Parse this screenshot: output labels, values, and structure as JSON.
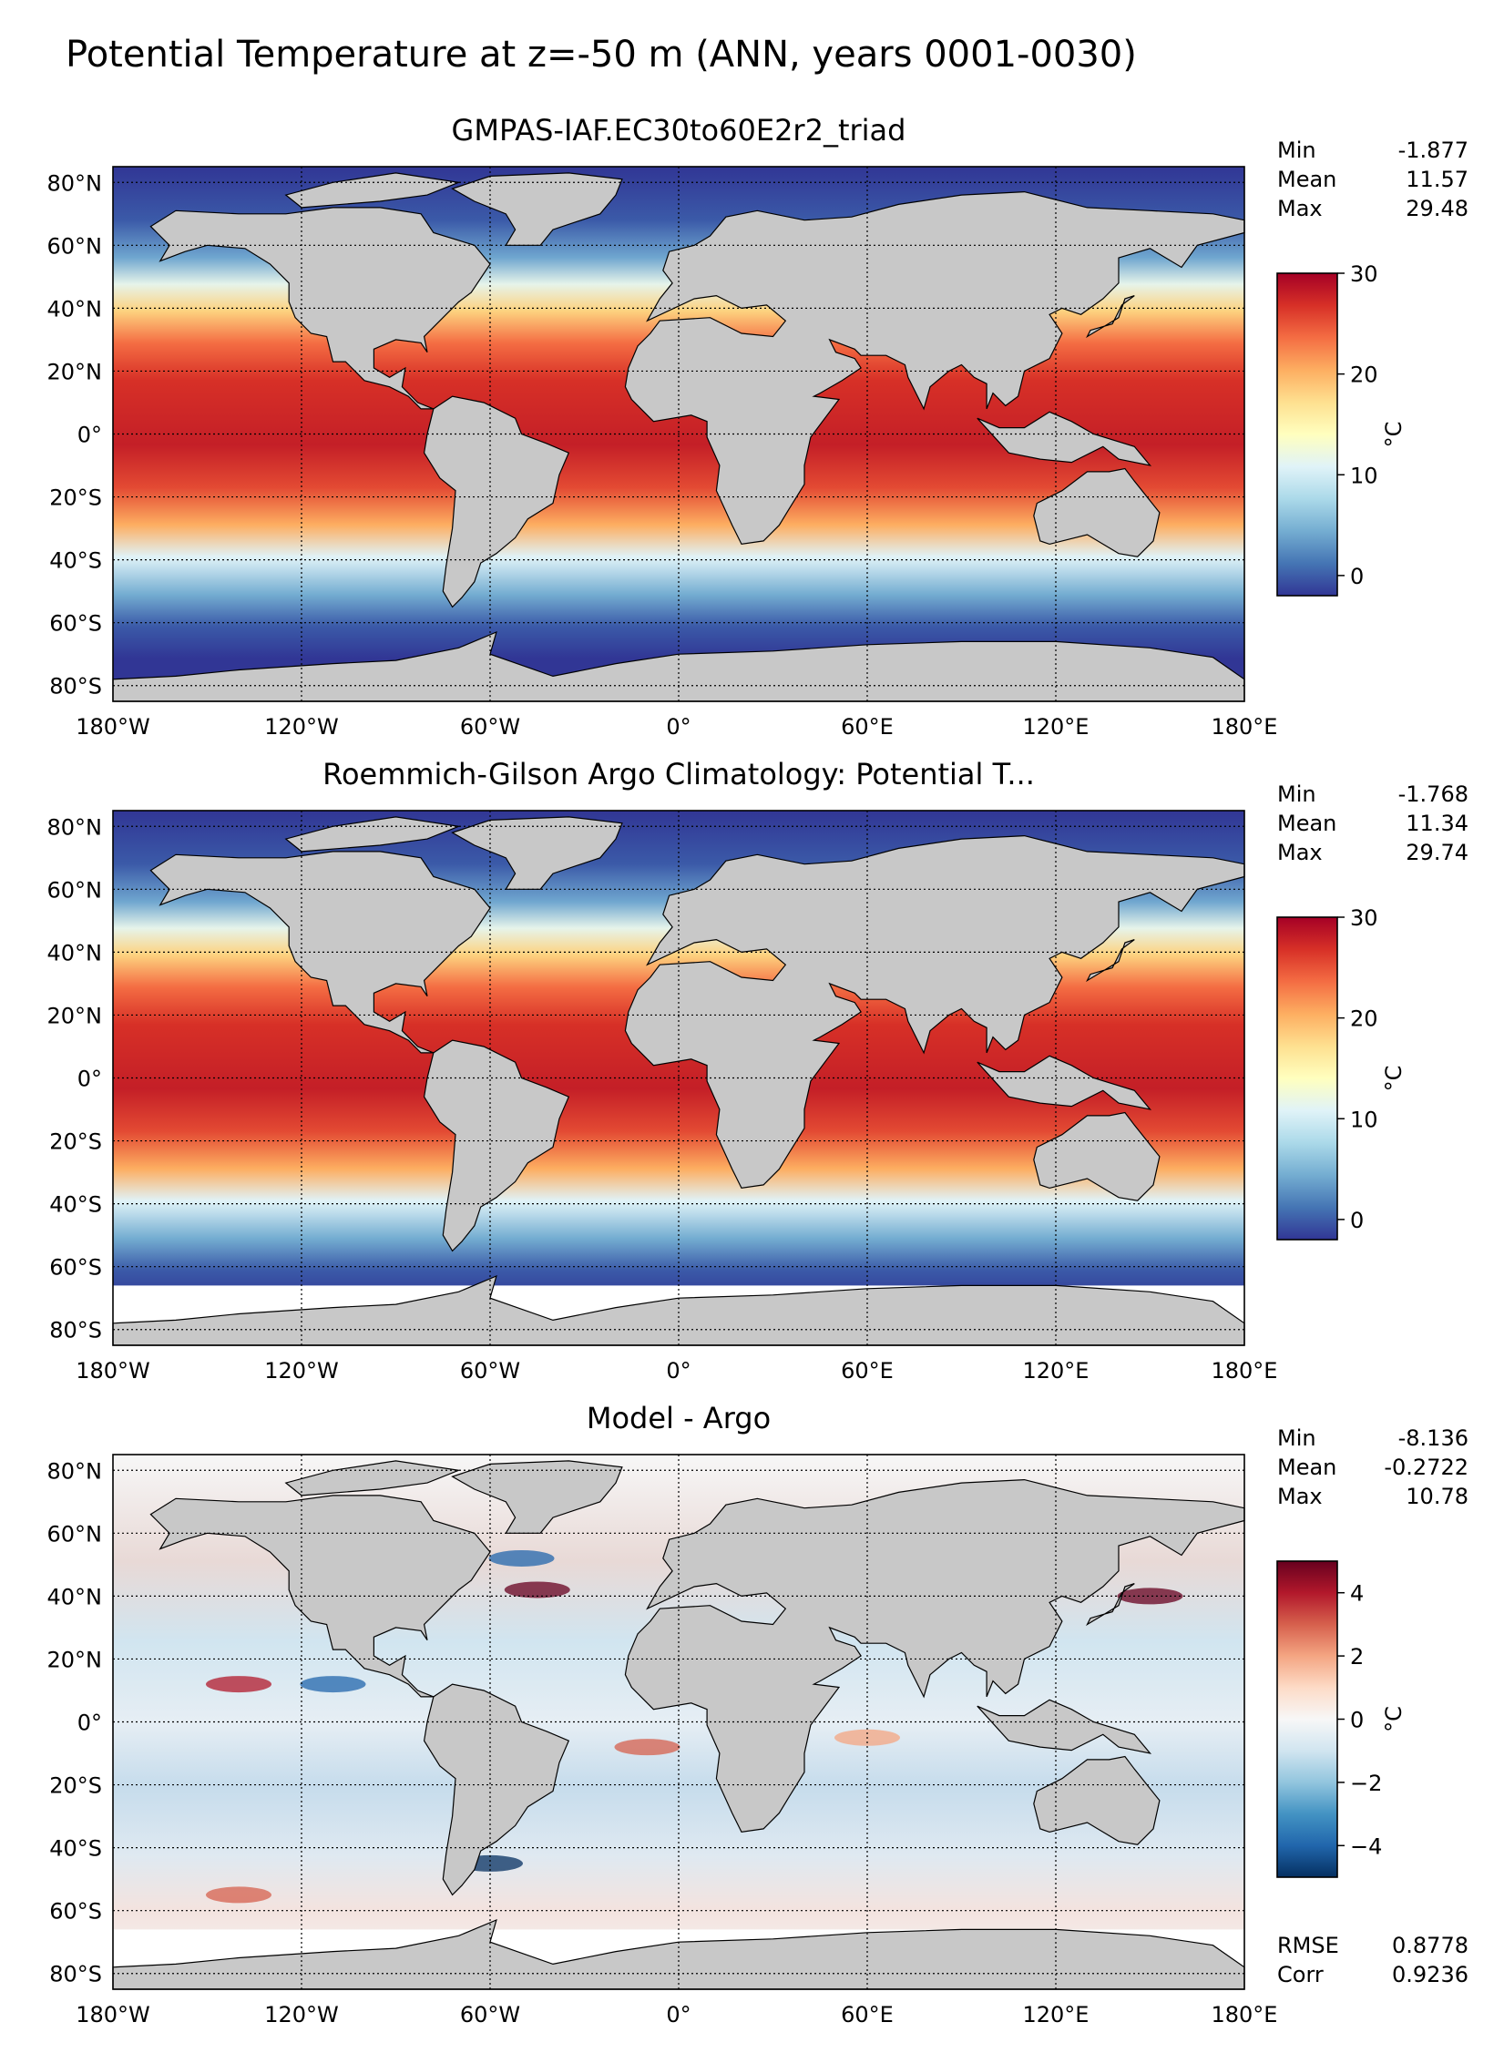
{
  "suptitle": "Potential Temperature at z=-50 m (ANN, years 0001-0030)",
  "x_ticks": [
    "180°W",
    "120°W",
    "60°W",
    "0°",
    "60°E",
    "120°E",
    "180°E"
  ],
  "y_ticks": [
    "80°N",
    "60°N",
    "40°N",
    "20°N",
    "0°",
    "20°S",
    "40°S",
    "60°S",
    "80°S"
  ],
  "unit": "°C",
  "colors": {
    "land": "#c8c8c8",
    "nodata": "#ffffff",
    "temp_scale": [
      "#313695",
      "#4575b4",
      "#74add1",
      "#abd9e9",
      "#e0f3f8",
      "#ffffbf",
      "#fee090",
      "#fdae61",
      "#f46d43",
      "#d73027",
      "#a50026"
    ],
    "diff_scale": [
      "#053061",
      "#2166ac",
      "#4393c3",
      "#92c5de",
      "#d1e5f0",
      "#f7f7f7",
      "#fddbc7",
      "#f4a582",
      "#d6604d",
      "#b2182b",
      "#67001f"
    ]
  },
  "panels": [
    {
      "title": "GMPAS-IAF.EC30to60E2r2_triad",
      "stats": [
        {
          "label": "Min",
          "value": "-1.877"
        },
        {
          "label": "Mean",
          "value": "11.57"
        },
        {
          "label": "Max",
          "value": "29.48"
        }
      ],
      "colorbar": {
        "scale": "temp_scale",
        "range": [
          -2,
          30
        ],
        "ticks": [
          "0",
          "10",
          "20",
          "30"
        ],
        "tick_values": [
          0,
          10,
          20,
          30
        ]
      },
      "footer_stats": []
    },
    {
      "title": "Roemmich-Gilson Argo Climatology: Potential T...",
      "stats": [
        {
          "label": "Min",
          "value": "-1.768"
        },
        {
          "label": "Mean",
          "value": "11.34"
        },
        {
          "label": "Max",
          "value": "29.74"
        }
      ],
      "colorbar": {
        "scale": "temp_scale",
        "range": [
          -2,
          30
        ],
        "ticks": [
          "0",
          "10",
          "20",
          "30"
        ],
        "tick_values": [
          0,
          10,
          20,
          30
        ]
      },
      "footer_stats": []
    },
    {
      "title": "Model - Argo",
      "stats": [
        {
          "label": "Min",
          "value": "-8.136"
        },
        {
          "label": "Mean",
          "value": "-0.2722"
        },
        {
          "label": "Max",
          "value": "10.78"
        }
      ],
      "colorbar": {
        "scale": "diff_scale",
        "range": [
          -5,
          5
        ],
        "ticks": [
          "4",
          "2",
          "0",
          "−2",
          "−4"
        ],
        "tick_values": [
          4,
          2,
          0,
          -2,
          -4
        ]
      },
      "footer_stats": [
        {
          "label": "RMSE",
          "value": "0.8778"
        },
        {
          "label": "Corr",
          "value": "0.9236"
        }
      ]
    }
  ]
}
